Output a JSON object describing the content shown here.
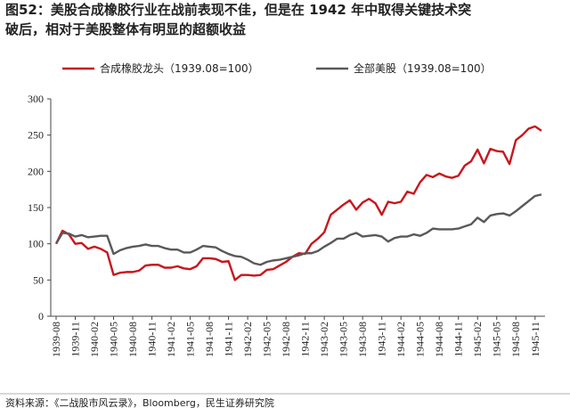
{
  "chart_data": {
    "type": "line",
    "title": "图52：美股合成橡胶行业在战前表现不佳，但是在 1942 年中取得关键技术突",
    "subtitle": "破后，相对于美股整体有明显的超额收益",
    "source": "资料来源：《二战股市风云录》，Bloomberg，民生证券研究院",
    "categories": [
      "1939-08",
      null,
      null,
      "1939-11",
      null,
      null,
      "1940-02",
      null,
      null,
      "1940-05",
      null,
      null,
      "1940-08",
      null,
      null,
      "1940-11",
      null,
      null,
      "1941-02",
      null,
      null,
      "1941-05",
      null,
      null,
      "1941-08",
      null,
      null,
      "1941-11",
      null,
      null,
      "1942-02",
      null,
      null,
      "1942-05",
      null,
      null,
      "1942-08",
      null,
      null,
      "1942-11",
      null,
      null,
      "1943-02",
      null,
      null,
      "1943-05",
      null,
      null,
      "1943-08",
      null,
      null,
      "1943-11",
      null,
      null,
      "1944-02",
      null,
      null,
      "1944-05",
      null,
      null,
      "1944-08",
      null,
      null,
      "1944-11",
      null,
      null,
      "1945-02",
      null,
      null,
      "1945-05",
      null,
      null,
      "1945-08",
      null,
      null,
      "1945-11",
      null
    ],
    "series": [
      {
        "name": "合成橡胶龙头（1939.08=100）",
        "color": "#c8161d",
        "values": [
          100,
          118,
          113,
          100,
          101,
          93,
          96,
          93,
          88,
          57,
          60,
          61,
          61,
          63,
          70,
          71,
          71,
          67,
          67,
          69,
          66,
          65,
          69,
          80,
          80,
          79,
          75,
          76,
          50,
          57,
          57,
          56,
          57,
          64,
          65,
          70,
          75,
          82,
          87,
          86,
          100,
          107,
          116,
          140,
          147,
          154,
          160,
          147,
          157,
          162,
          156,
          140,
          158,
          156,
          158,
          172,
          169,
          185,
          195,
          192,
          197,
          193,
          191,
          194,
          208,
          214,
          230,
          211,
          231,
          228,
          227,
          210,
          243,
          250,
          259,
          262,
          256
        ]
      },
      {
        "name": "全部美股（1939.08=100）",
        "color": "#595959",
        "values": [
          100,
          115,
          114,
          110,
          112,
          109,
          110,
          111,
          111,
          86,
          91,
          94,
          96,
          97,
          99,
          97,
          97,
          94,
          92,
          92,
          88,
          88,
          92,
          97,
          96,
          95,
          90,
          86,
          83,
          82,
          78,
          73,
          71,
          75,
          77,
          78,
          80,
          82,
          84,
          87,
          87,
          90,
          96,
          101,
          107,
          107,
          112,
          115,
          110,
          111,
          112,
          110,
          103,
          108,
          110,
          110,
          113,
          111,
          115,
          121,
          120,
          120,
          120,
          121,
          124,
          127,
          136,
          130,
          139,
          141,
          142,
          139,
          145,
          152,
          159,
          166,
          168
        ]
      }
    ],
    "ylim": [
      0,
      300
    ],
    "yticks": [
      0,
      50,
      100,
      150,
      200,
      250,
      300
    ],
    "legend": "top"
  }
}
